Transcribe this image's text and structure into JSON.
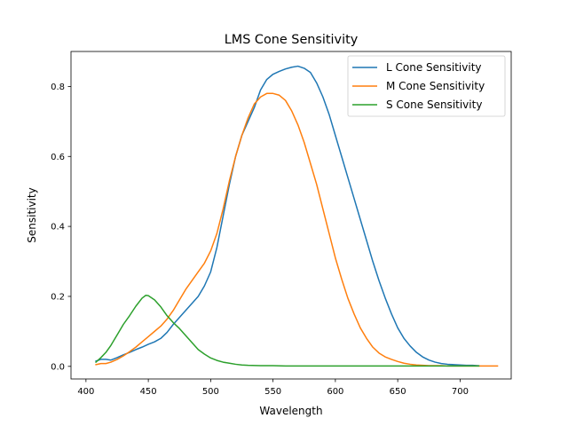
{
  "chart_data": {
    "type": "line",
    "title": "LMS Cone Sensitivity",
    "xlabel": "Wavelength",
    "ylabel": "Sensitivity",
    "xlim": [
      388,
      741
    ],
    "ylim": [
      -0.036,
      0.9
    ],
    "xticks": [
      400,
      450,
      500,
      550,
      600,
      650,
      700
    ],
    "yticks": [
      0.0,
      0.2,
      0.4,
      0.6,
      0.8
    ],
    "ytick_labels": [
      "0.0",
      "0.2",
      "0.4",
      "0.6",
      "0.8"
    ],
    "grid": false,
    "legend_position": "top-right",
    "series": [
      {
        "name": "L Cone Sensitivity",
        "color": "#1f77b4",
        "x": [
          408,
          412,
          416,
          420,
          425,
          430,
          435,
          440,
          445,
          450,
          455,
          460,
          465,
          470,
          475,
          480,
          485,
          490,
          495,
          500,
          505,
          510,
          515,
          520,
          525,
          530,
          535,
          540,
          545,
          550,
          555,
          560,
          565,
          570,
          575,
          580,
          585,
          590,
          595,
          600,
          605,
          610,
          615,
          620,
          625,
          630,
          635,
          640,
          645,
          650,
          655,
          660,
          665,
          670,
          675,
          680,
          685,
          690,
          695,
          700,
          705,
          710,
          715
        ],
        "y": [
          0.015,
          0.02,
          0.02,
          0.018,
          0.025,
          0.033,
          0.04,
          0.048,
          0.055,
          0.063,
          0.07,
          0.08,
          0.097,
          0.12,
          0.14,
          0.16,
          0.18,
          0.2,
          0.23,
          0.27,
          0.34,
          0.43,
          0.52,
          0.6,
          0.66,
          0.7,
          0.74,
          0.79,
          0.82,
          0.835,
          0.843,
          0.85,
          0.855,
          0.858,
          0.852,
          0.84,
          0.81,
          0.77,
          0.72,
          0.66,
          0.6,
          0.54,
          0.48,
          0.42,
          0.36,
          0.3,
          0.245,
          0.195,
          0.15,
          0.11,
          0.08,
          0.058,
          0.04,
          0.027,
          0.018,
          0.012,
          0.008,
          0.006,
          0.005,
          0.004,
          0.003,
          0.003,
          0.002
        ]
      },
      {
        "name": "M Cone Sensitivity",
        "color": "#ff7f0e",
        "x": [
          408,
          412,
          416,
          420,
          425,
          430,
          435,
          440,
          445,
          450,
          455,
          460,
          465,
          470,
          475,
          480,
          485,
          490,
          495,
          500,
          505,
          510,
          515,
          520,
          525,
          530,
          535,
          540,
          545,
          550,
          555,
          560,
          565,
          570,
          575,
          580,
          585,
          590,
          595,
          600,
          605,
          610,
          615,
          620,
          625,
          630,
          635,
          640,
          645,
          650,
          655,
          660,
          665,
          670,
          675,
          680,
          685,
          690,
          700,
          710,
          720,
          730
        ],
        "y": [
          0.005,
          0.008,
          0.008,
          0.012,
          0.02,
          0.03,
          0.042,
          0.055,
          0.07,
          0.085,
          0.1,
          0.115,
          0.135,
          0.16,
          0.19,
          0.22,
          0.245,
          0.27,
          0.295,
          0.33,
          0.38,
          0.45,
          0.53,
          0.6,
          0.66,
          0.71,
          0.75,
          0.77,
          0.78,
          0.78,
          0.775,
          0.76,
          0.73,
          0.69,
          0.64,
          0.58,
          0.52,
          0.45,
          0.38,
          0.31,
          0.25,
          0.195,
          0.15,
          0.11,
          0.08,
          0.055,
          0.038,
          0.027,
          0.02,
          0.014,
          0.009,
          0.006,
          0.004,
          0.003,
          0.002,
          0.002,
          0.002,
          0.001,
          0.001,
          0.001,
          0.001,
          0.001
        ]
      },
      {
        "name": "S Cone Sensitivity",
        "color": "#2ca02c",
        "x": [
          408,
          412,
          416,
          420,
          425,
          430,
          435,
          440,
          445,
          448,
          450,
          455,
          460,
          465,
          470,
          475,
          480,
          485,
          490,
          495,
          500,
          505,
          510,
          515,
          520,
          525,
          530,
          540,
          550,
          560,
          580,
          600,
          620,
          640,
          660,
          680,
          700,
          715
        ],
        "y": [
          0.012,
          0.025,
          0.04,
          0.06,
          0.09,
          0.12,
          0.145,
          0.172,
          0.195,
          0.203,
          0.202,
          0.19,
          0.17,
          0.145,
          0.125,
          0.108,
          0.088,
          0.068,
          0.048,
          0.035,
          0.024,
          0.017,
          0.012,
          0.009,
          0.006,
          0.004,
          0.003,
          0.002,
          0.002,
          0.001,
          0.001,
          0.001,
          0.001,
          0.001,
          0.001,
          0.001,
          0.001,
          0.001
        ]
      }
    ]
  }
}
